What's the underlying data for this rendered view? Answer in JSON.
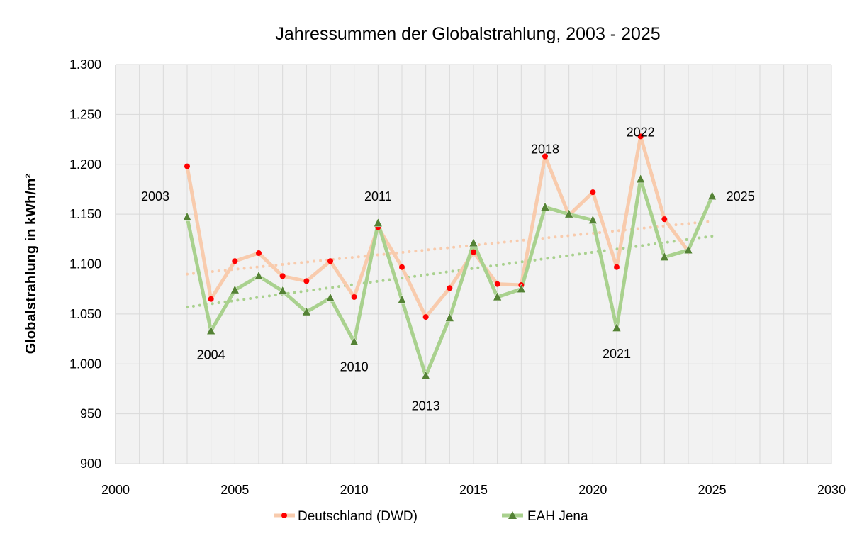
{
  "chart_data": {
    "type": "line",
    "title": "Jahressummen der Globalstrahlung, 2003 - 2025",
    "xlabel": "",
    "ylabel": "Globalstrahlung in kWh/m²",
    "xlim": [
      2000,
      2030
    ],
    "ylim": [
      900,
      1300
    ],
    "x_ticks": [
      2000,
      2005,
      2010,
      2015,
      2020,
      2025,
      2030
    ],
    "x_tick_labels": [
      "2000",
      "2005",
      "2010",
      "2015",
      "2020",
      "2025",
      "2030"
    ],
    "y_ticks": [
      900,
      950,
      1000,
      1050,
      1100,
      1150,
      1200,
      1250,
      1300
    ],
    "y_tick_labels": [
      "900",
      "950",
      "1.000",
      "1.050",
      "1.100",
      "1.150",
      "1.200",
      "1.250",
      "1.300"
    ],
    "grid": true,
    "legend_position": "bottom",
    "series": [
      {
        "name": "Deutschland (DWD)",
        "line_color": "#f8cbad",
        "marker_color": "#ff0000",
        "marker": "circle",
        "x": [
          2003,
          2004,
          2005,
          2006,
          2007,
          2008,
          2009,
          2010,
          2011,
          2012,
          2013,
          2014,
          2015,
          2016,
          2017,
          2018,
          2019,
          2020,
          2021,
          2022,
          2023,
          2024
        ],
        "values": [
          1198,
          1065,
          1103,
          1111,
          1088,
          1083,
          1103,
          1067,
          1137,
          1097,
          1047,
          1076,
          1112,
          1080,
          1079,
          1208,
          1149,
          1172,
          1097,
          1228,
          1145,
          1113
        ],
        "trend": {
          "x": [
            2003,
            2025
          ],
          "values": [
            1090,
            1143
          ],
          "color": "#f8cbad"
        }
      },
      {
        "name": "EAH Jena",
        "line_color": "#a9d18e",
        "marker_color": "#548235",
        "marker": "triangle",
        "x": [
          2003,
          2004,
          2005,
          2006,
          2007,
          2008,
          2009,
          2010,
          2011,
          2012,
          2013,
          2014,
          2015,
          2016,
          2017,
          2018,
          2019,
          2020,
          2021,
          2022,
          2023,
          2024,
          2025
        ],
        "values": [
          1147,
          1033,
          1074,
          1088,
          1073,
          1052,
          1066,
          1022,
          1141,
          1064,
          988,
          1046,
          1121,
          1067,
          1075,
          1157,
          1150,
          1144,
          1036,
          1185,
          1107,
          1114,
          1168
        ],
        "trend": {
          "x": [
            2003,
            2025
          ],
          "values": [
            1057,
            1128
          ],
          "color": "#a9d18e"
        }
      }
    ],
    "annotations": [
      {
        "text": "2003",
        "x": 2003,
        "y": 1168
      },
      {
        "text": "2004",
        "x": 2004,
        "y": 1009
      },
      {
        "text": "2010",
        "x": 2010,
        "y": 997
      },
      {
        "text": "2011",
        "x": 2011,
        "y": 1168
      },
      {
        "text": "2013",
        "x": 2013,
        "y": 958
      },
      {
        "text": "2018",
        "x": 2018,
        "y": 1215
      },
      {
        "text": "2021",
        "x": 2021,
        "y": 1010
      },
      {
        "text": "2022",
        "x": 2022,
        "y": 1232
      },
      {
        "text": "2025",
        "x": 2025,
        "y": 1168
      }
    ]
  }
}
